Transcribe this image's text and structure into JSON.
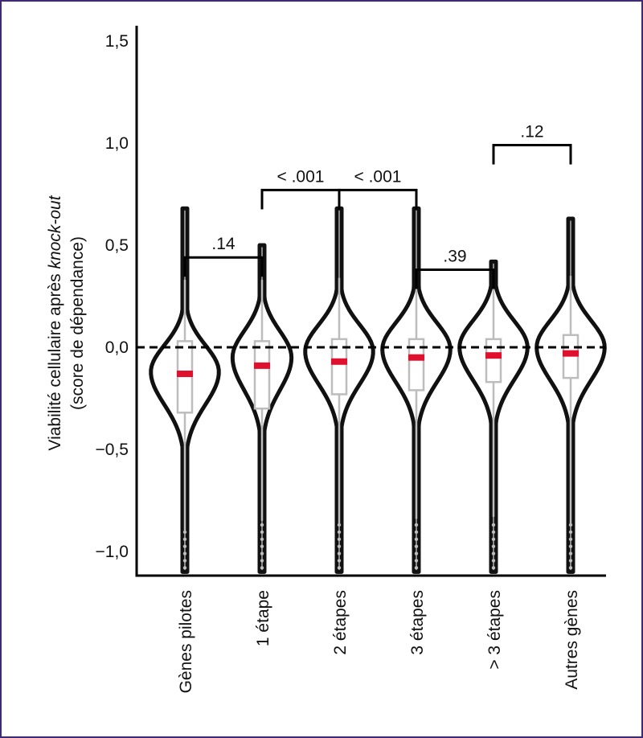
{
  "chart_data": {
    "type": "violin",
    "ylabel_line1_prefix": "Viabilité cellulaire après ",
    "ylabel_line1_italic": "knock-out",
    "ylabel_line2": "(score de dépendance)",
    "ylim": [
      -1.1,
      1.55
    ],
    "yticks": [
      {
        "value": 1.5,
        "label": "1,5"
      },
      {
        "value": 1.0,
        "label": "1,0"
      },
      {
        "value": 0.5,
        "label": "0,5"
      },
      {
        "value": 0.0,
        "label": "0,0"
      },
      {
        "value": -0.5,
        "label": "−0,5"
      },
      {
        "value": -1.0,
        "label": "−1,0"
      }
    ],
    "reference_line": 0.0,
    "colors": {
      "violin": "#111111",
      "box": "#bdbdbd",
      "median": "#e0102f",
      "points": "#bdbdbd"
    },
    "categories": [
      "Gènes pilotes",
      "1 étape",
      "2 étapes",
      "3 étapes",
      "> 3 étapes",
      "Autres gènes"
    ],
    "groups": [
      {
        "name": "Gènes pilotes",
        "median": -0.13,
        "q1": -0.32,
        "q3": 0.03,
        "whisker_low": -0.9,
        "whisker_high": 0.33,
        "min": -1.1,
        "max": 0.68,
        "peak": -0.12,
        "width": 0.9
      },
      {
        "name": "1 étape",
        "median": -0.09,
        "q1": -0.3,
        "q3": 0.03,
        "whisker_low": -0.85,
        "whisker_high": 0.33,
        "min": -1.1,
        "max": 0.5,
        "peak": -0.05,
        "width": 0.78
      },
      {
        "name": "2 étapes",
        "median": -0.07,
        "q1": -0.23,
        "q3": 0.04,
        "whisker_low": -0.87,
        "whisker_high": 0.34,
        "min": -1.1,
        "max": 0.68,
        "peak": -0.02,
        "width": 0.9
      },
      {
        "name": "3 étapes",
        "median": -0.05,
        "q1": -0.21,
        "q3": 0.04,
        "whisker_low": -0.84,
        "whisker_high": 0.35,
        "min": -1.1,
        "max": 0.68,
        "peak": -0.01,
        "width": 0.9
      },
      {
        "name": "> 3 étapes",
        "median": -0.04,
        "q1": -0.17,
        "q3": 0.04,
        "whisker_low": -0.83,
        "whisker_high": 0.33,
        "min": -1.1,
        "max": 0.42,
        "peak": 0.0,
        "width": 0.9
      },
      {
        "name": "Autres gènes",
        "median": -0.03,
        "q1": -0.15,
        "q3": 0.06,
        "whisker_low": -0.87,
        "whisker_high": 0.35,
        "min": -1.1,
        "max": 0.63,
        "peak": 0.0,
        "width": 0.9
      }
    ],
    "comparisons": [
      {
        "from": 0,
        "to": 1,
        "y": 0.44,
        "label": ".14"
      },
      {
        "from": 1,
        "to": 2,
        "y": 0.77,
        "label": "< .001"
      },
      {
        "from": 2,
        "to": 3,
        "y": 0.77,
        "label": "< .001"
      },
      {
        "from": 3,
        "to": 4,
        "y": 0.38,
        "label": ".39"
      },
      {
        "from": 4,
        "to": 5,
        "y": 0.99,
        "label": ".12"
      }
    ]
  }
}
